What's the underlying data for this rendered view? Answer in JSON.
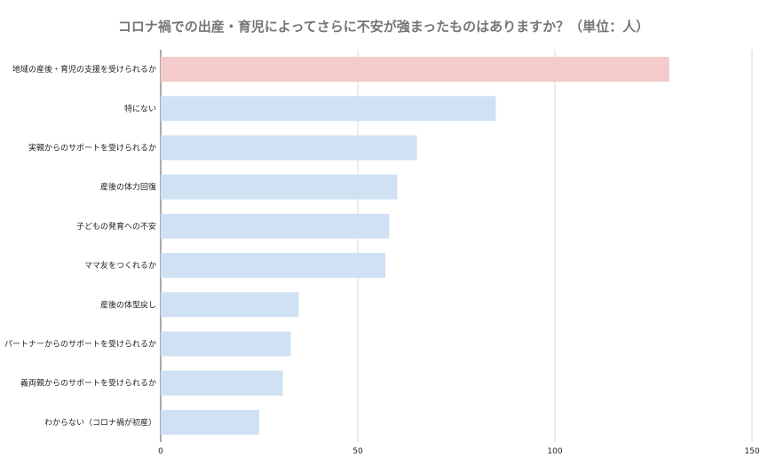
{
  "chart_data": {
    "type": "bar",
    "orientation": "horizontal",
    "title": "コロナ禍での出産・育児によってさらに不安が強まったものはありますか？（単位：人）",
    "categories": [
      "地域の産後・育児の支援を受けられるか",
      "特にない",
      "実親からのサポートを受けられるか",
      "産後の体力回復",
      "子どもの発育への不安",
      "ママ友をつくれるか",
      "産後の体型戻し",
      "パートナーからのサポートを受けられるか",
      "義両親からのサポートを受けられるか",
      "わからない（コロナ禍が初産）"
    ],
    "values": [
      129,
      85,
      65,
      60,
      58,
      57,
      35,
      33,
      31,
      25
    ],
    "xlim": [
      0,
      150
    ],
    "xticks": [
      0,
      50,
      100,
      150
    ],
    "colors": {
      "highlight": "#f4cacb",
      "default": "#cfe1f3",
      "grid": "#d9d9d9",
      "axis": "#555555"
    },
    "highlight_index": 0,
    "grid": true,
    "legend": "none"
  }
}
